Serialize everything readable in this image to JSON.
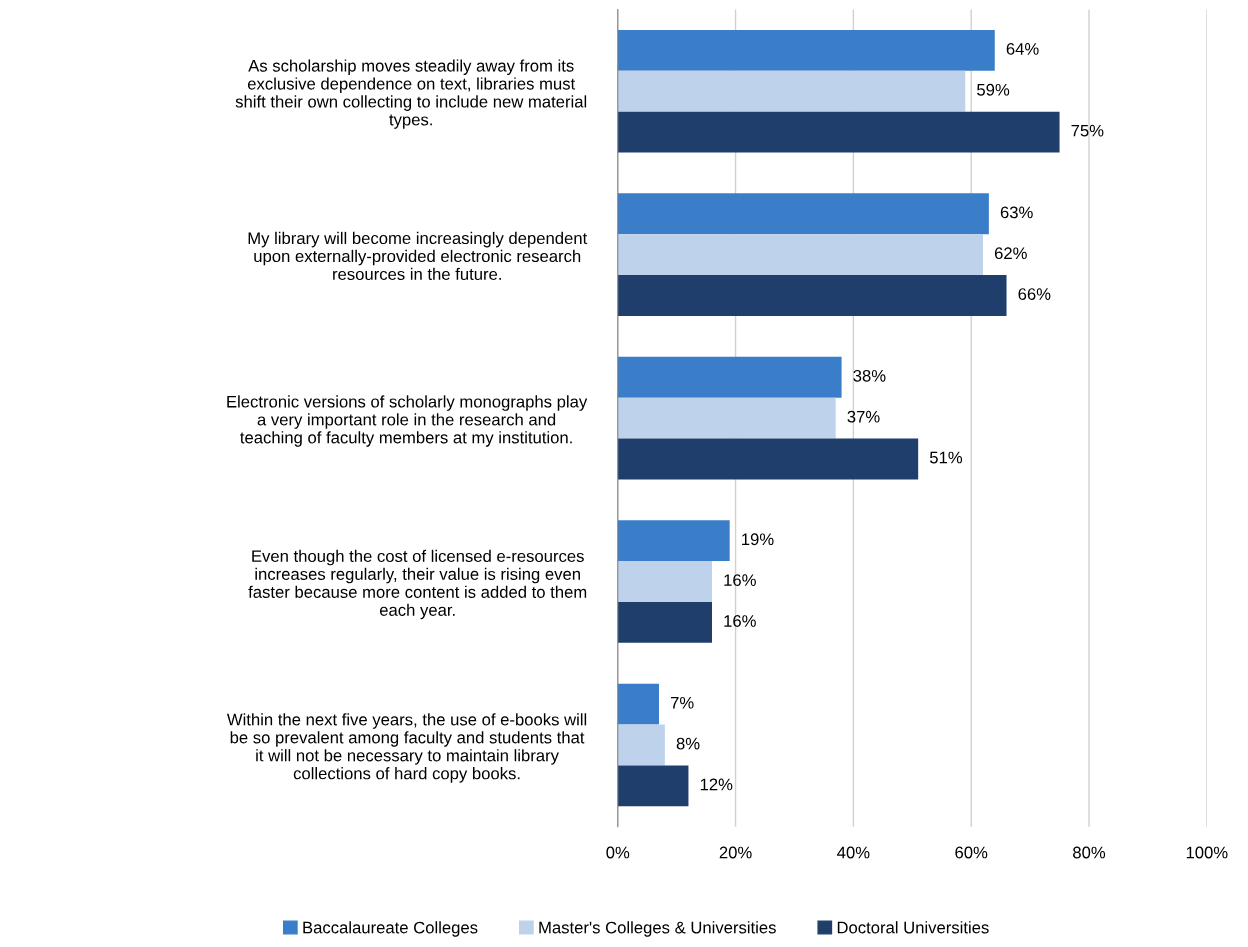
{
  "chart_data": {
    "type": "bar",
    "orientation": "horizontal",
    "categories": [
      "As scholarship moves steadily away from its\nexclusive dependence on text, libraries must\nshift their own collecting to include new material\ntypes.",
      "My library will become increasingly dependent\nupon externally-provided electronic research\nresources in the future.",
      "Electronic versions of scholarly monographs play\na very important role in the research and\nteaching of faculty members at my institution.",
      "Even though the cost of licensed e-resources\nincreases regularly, their value is rising even\nfaster because more content is added to them\neach year.",
      "Within the next five years, the use of e-books will\nbe so prevalent among faculty and students that\nit will not be necessary to maintain library\ncollections of hard copy books."
    ],
    "series": [
      {
        "name": "Baccalaureate Colleges",
        "color": "#3a7dc9",
        "values": [
          64,
          63,
          38,
          19,
          7
        ],
        "value_labels": [
          "64%",
          "63%",
          "38%",
          "19%",
          "7%"
        ]
      },
      {
        "name": "Master's Colleges & Universities",
        "color": "#bed3eb",
        "values": [
          59,
          62,
          37,
          16,
          8
        ],
        "value_labels": [
          "59%",
          "62%",
          "37%",
          "16%",
          "8%"
        ]
      },
      {
        "name": "Doctoral Universities",
        "color": "#1f3e6b",
        "values": [
          75,
          66,
          51,
          16,
          12
        ],
        "value_labels": [
          "75%",
          "66%",
          "51%",
          "16%",
          "12%"
        ]
      }
    ],
    "xlim": [
      0,
      100
    ],
    "xticks": [
      {
        "value": 0,
        "label": "0%"
      },
      {
        "value": 20,
        "label": "20%"
      },
      {
        "value": 40,
        "label": "40%"
      },
      {
        "value": 60,
        "label": "60%"
      },
      {
        "value": 80,
        "label": "80%"
      },
      {
        "value": 100,
        "label": "100%"
      }
    ],
    "grid": "x",
    "legend": "bottom"
  }
}
